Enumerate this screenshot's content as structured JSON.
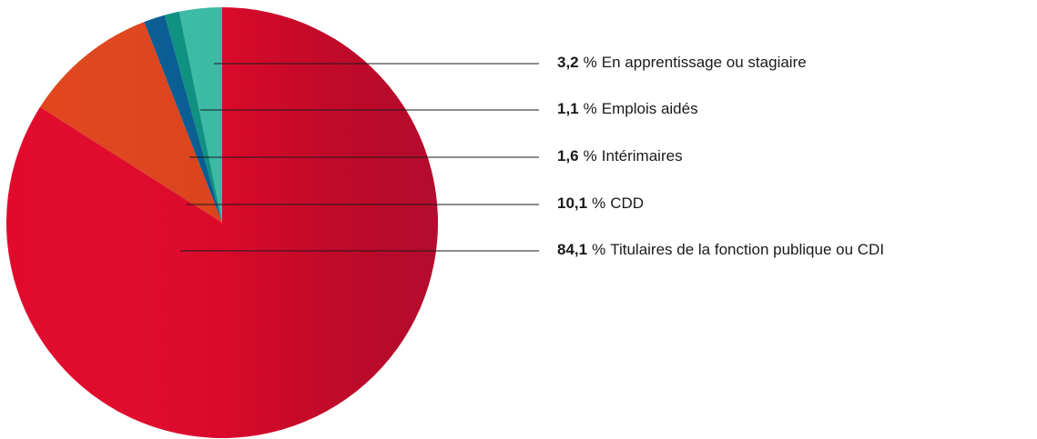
{
  "chart_data": {
    "type": "pie",
    "categories": [
      "En apprentissage ou stagiaire",
      "Emplois aidés",
      "Intérimaires",
      "CDD",
      "Titulaires de la fonction publique ou CDI"
    ],
    "values": [
      3.2,
      1.1,
      1.6,
      10.1,
      84.1
    ],
    "value_labels": [
      "3,2",
      "1,1",
      "1,6",
      "10,1",
      "84,1"
    ],
    "unit": "%",
    "colors": [
      "#3dbfa9",
      "#0f9484",
      "#0a5f96",
      "#e0461e",
      "#e10a2d"
    ]
  }
}
